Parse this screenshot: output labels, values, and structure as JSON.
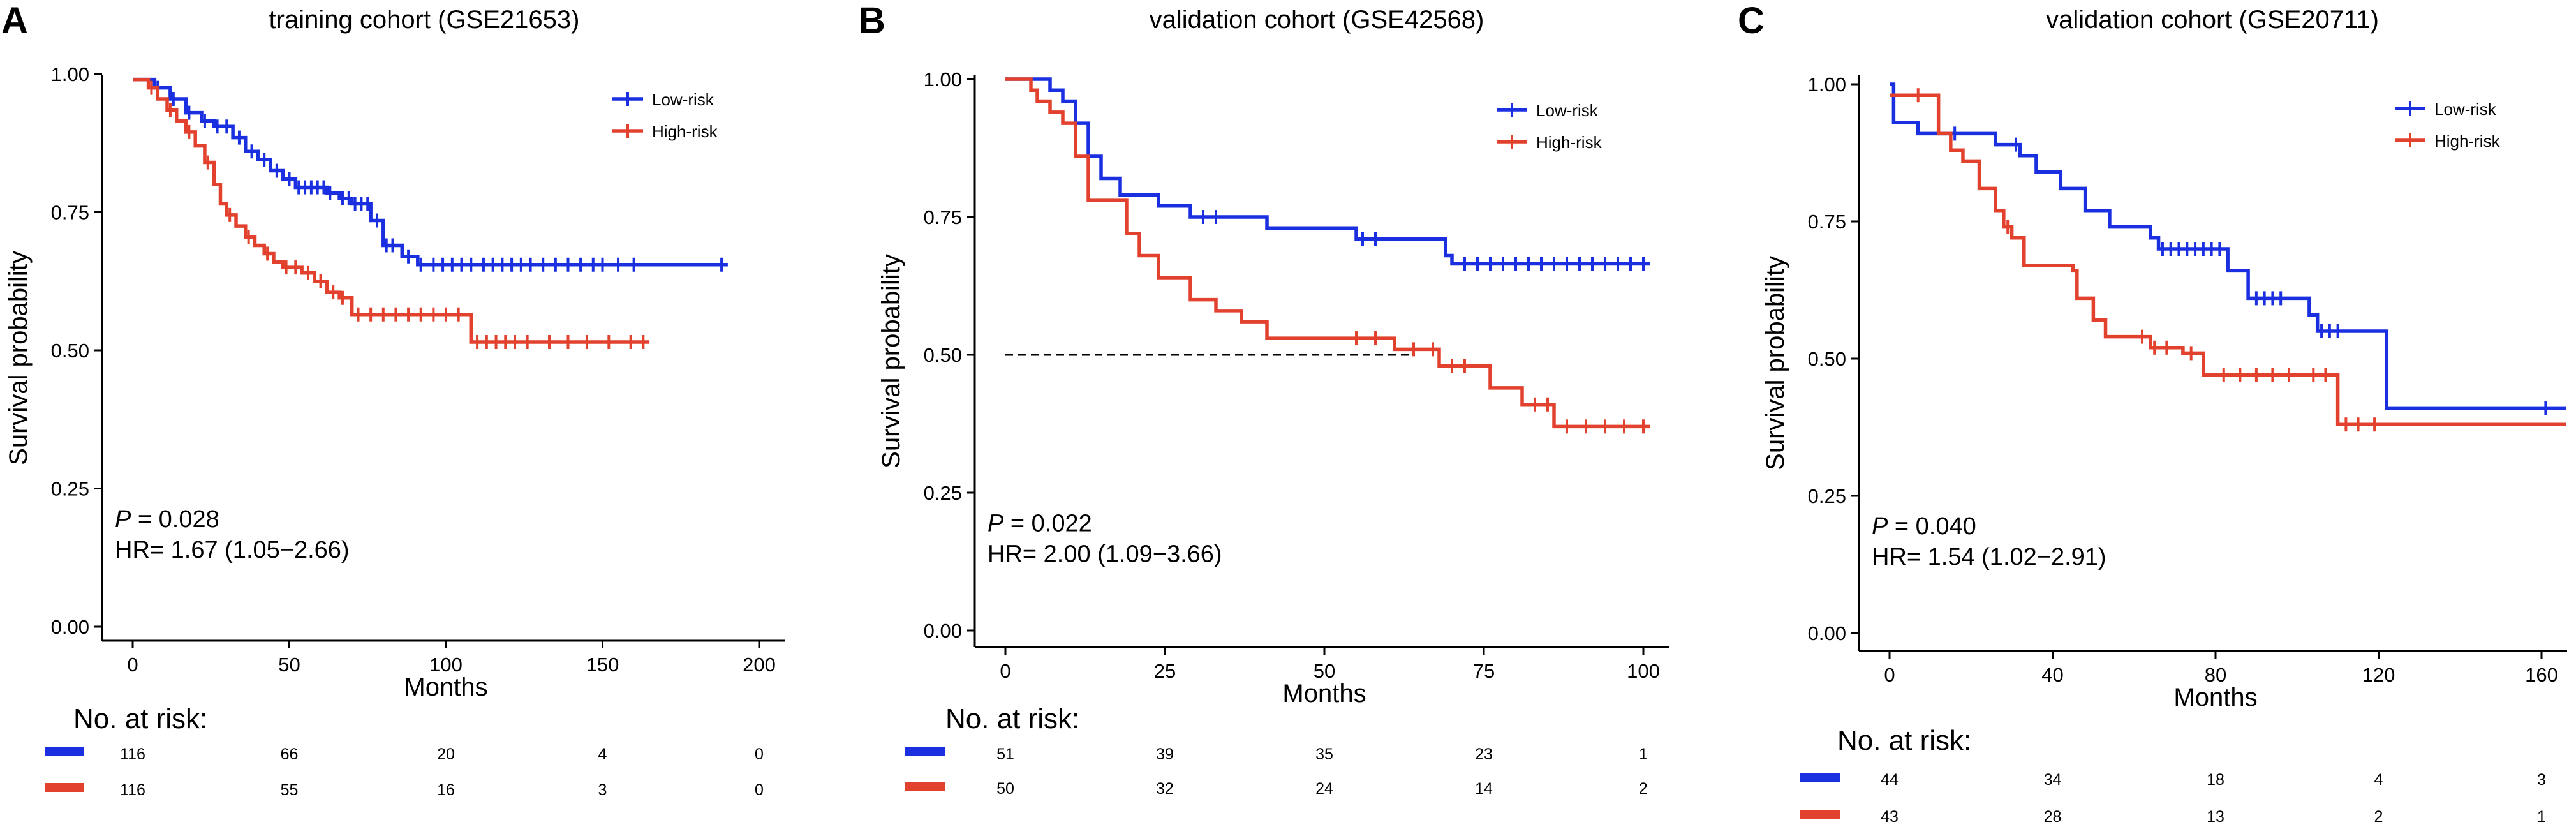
{
  "colors": {
    "low": "#1a2fe0",
    "high": "#e2412e",
    "axis": "#000000",
    "text": "#000000"
  },
  "y_axis_label": "Survival probability",
  "x_axis_label": "Months",
  "risk_title": "No. at risk:",
  "chart_data": [
    {
      "type": "line",
      "panel_letter": "A",
      "title": "training cohort (GSE21653)",
      "xlabel": "Months",
      "ylabel": "Survival probability",
      "xlim": [
        0,
        200
      ],
      "ylim": [
        0,
        1
      ],
      "xticks": [
        0,
        50,
        100,
        150,
        200
      ],
      "yticks": [
        0.0,
        0.25,
        0.5,
        0.75,
        1.0
      ],
      "legend_position": "top-right",
      "stats": {
        "p_label": "P",
        "p_value": "= 0.028",
        "hr": "HR= 1.67 (1.05−2.66)"
      },
      "median_line": null,
      "series": [
        {
          "name": "Low-risk",
          "color_key": "low",
          "steps": [
            [
              0,
              0.99
            ],
            [
              7,
              0.975
            ],
            [
              12,
              0.955
            ],
            [
              17,
              0.93
            ],
            [
              22,
              0.915
            ],
            [
              26,
              0.905
            ],
            [
              32,
              0.885
            ],
            [
              36,
              0.86
            ],
            [
              40,
              0.845
            ],
            [
              44,
              0.825
            ],
            [
              48,
              0.81
            ],
            [
              52,
              0.795
            ],
            [
              62,
              0.785
            ],
            [
              66,
              0.775
            ],
            [
              70,
              0.765
            ],
            [
              76,
              0.735
            ],
            [
              80,
              0.69
            ],
            [
              86,
              0.67
            ],
            [
              91,
              0.655
            ],
            [
              190,
              0.655
            ]
          ],
          "censor": [
            8,
            13,
            18,
            23,
            27,
            30,
            34,
            38,
            42,
            46,
            50,
            53,
            55,
            57,
            59,
            61,
            63,
            67,
            69,
            71,
            73,
            75,
            78,
            81,
            83,
            88,
            92,
            96,
            99,
            102,
            105,
            108,
            112,
            115,
            118,
            121,
            124,
            127,
            131,
            135,
            139,
            143,
            147,
            150,
            155,
            160,
            188
          ]
        },
        {
          "name": "High-risk",
          "color_key": "high",
          "steps": [
            [
              0,
              0.99
            ],
            [
              5,
              0.975
            ],
            [
              8,
              0.955
            ],
            [
              11,
              0.935
            ],
            [
              14,
              0.915
            ],
            [
              17,
              0.895
            ],
            [
              20,
              0.87
            ],
            [
              23,
              0.84
            ],
            [
              26,
              0.8
            ],
            [
              28,
              0.765
            ],
            [
              30,
              0.745
            ],
            [
              33,
              0.725
            ],
            [
              36,
              0.705
            ],
            [
              39,
              0.69
            ],
            [
              42,
              0.675
            ],
            [
              45,
              0.66
            ],
            [
              48,
              0.65
            ],
            [
              54,
              0.64
            ],
            [
              58,
              0.625
            ],
            [
              62,
              0.605
            ],
            [
              66,
              0.595
            ],
            [
              70,
              0.565
            ],
            [
              108,
              0.515
            ],
            [
              165,
              0.515
            ]
          ],
          "censor": [
            6,
            12,
            18,
            24,
            31,
            37,
            43,
            49,
            52,
            56,
            60,
            64,
            67,
            72,
            76,
            80,
            84,
            88,
            92,
            96,
            100,
            104,
            110,
            113,
            116,
            119,
            122,
            126,
            133,
            139,
            145,
            152,
            159,
            163
          ]
        }
      ],
      "risk_times": [
        0,
        50,
        100,
        150,
        200
      ],
      "risk_table": [
        {
          "group": "Low-risk",
          "color_key": "low",
          "counts": [
            "116",
            "66",
            "20",
            "4",
            "0"
          ]
        },
        {
          "group": "High-risk",
          "color_key": "high",
          "counts": [
            "116",
            "55",
            "16",
            "3",
            "0"
          ]
        }
      ]
    },
    {
      "type": "line",
      "panel_letter": "B",
      "title": "validation cohort (GSE42568)",
      "xlabel": "Months",
      "ylabel": "Survival probability",
      "xlim": [
        0,
        100
      ],
      "ylim": [
        0,
        1
      ],
      "xticks": [
        0,
        25,
        50,
        75,
        100
      ],
      "yticks": [
        0.0,
        0.25,
        0.5,
        0.75,
        1.0
      ],
      "legend_position": "top-right",
      "stats": {
        "p_label": "P",
        "p_value": "= 0.022",
        "hr": "HR= 2.00 (1.09−3.66)"
      },
      "median_line": {
        "y": 0.5,
        "x_start": 0,
        "x_end": 64
      },
      "series": [
        {
          "name": "Low-risk",
          "color_key": "low",
          "steps": [
            [
              0,
              1.0
            ],
            [
              7,
              0.98
            ],
            [
              9,
              0.96
            ],
            [
              11,
              0.92
            ],
            [
              13,
              0.86
            ],
            [
              15,
              0.82
            ],
            [
              18,
              0.79
            ],
            [
              24,
              0.77
            ],
            [
              29,
              0.75
            ],
            [
              41,
              0.73
            ],
            [
              55,
              0.71
            ],
            [
              69,
              0.68
            ],
            [
              70,
              0.665
            ],
            [
              101,
              0.665
            ]
          ],
          "censor": [
            31,
            33,
            56,
            58,
            72,
            74,
            76,
            78,
            80,
            82,
            84,
            86,
            88,
            90,
            92,
            94,
            96,
            98,
            100
          ]
        },
        {
          "name": "High-risk",
          "color_key": "high",
          "steps": [
            [
              0,
              1.0
            ],
            [
              4,
              0.98
            ],
            [
              5,
              0.96
            ],
            [
              7,
              0.94
            ],
            [
              9,
              0.92
            ],
            [
              11,
              0.86
            ],
            [
              13,
              0.78
            ],
            [
              19,
              0.72
            ],
            [
              21,
              0.68
            ],
            [
              24,
              0.64
            ],
            [
              29,
              0.6
            ],
            [
              33,
              0.58
            ],
            [
              37,
              0.56
            ],
            [
              41,
              0.53
            ],
            [
              61,
              0.51
            ],
            [
              68,
              0.48
            ],
            [
              76,
              0.44
            ],
            [
              81,
              0.41
            ],
            [
              86,
              0.37
            ],
            [
              101,
              0.37
            ]
          ],
          "censor": [
            55,
            58,
            64,
            67,
            70,
            72,
            83,
            85,
            88,
            91,
            94,
            97,
            100
          ]
        }
      ],
      "risk_times": [
        0,
        25,
        50,
        75,
        100
      ],
      "risk_table": [
        {
          "group": "Low-risk",
          "color_key": "low",
          "counts": [
            "51",
            "39",
            "35",
            "23",
            "1"
          ]
        },
        {
          "group": "High-risk",
          "color_key": "high",
          "counts": [
            "50",
            "32",
            "24",
            "14",
            "2"
          ]
        }
      ]
    },
    {
      "type": "line",
      "panel_letter": "C",
      "title": "validation cohort (GSE20711)",
      "xlabel": "Months",
      "ylabel": "Survival probability",
      "xlim": [
        0,
        160
      ],
      "ylim": [
        0,
        1
      ],
      "xticks": [
        0,
        40,
        80,
        120,
        160
      ],
      "yticks": [
        0.0,
        0.25,
        0.5,
        0.75,
        1.0
      ],
      "legend_position": "top-right",
      "stats": {
        "p_label": "P",
        "p_value": "= 0.040",
        "hr": "HR= 1.54 (1.02−2.91)"
      },
      "median_line": null,
      "series": [
        {
          "name": "Low-risk",
          "color_key": "low",
          "steps": [
            [
              0,
              1.0
            ],
            [
              1,
              0.93
            ],
            [
              7,
              0.91
            ],
            [
              26,
              0.89
            ],
            [
              32,
              0.87
            ],
            [
              36,
              0.84
            ],
            [
              42,
              0.81
            ],
            [
              48,
              0.77
            ],
            [
              54,
              0.74
            ],
            [
              64,
              0.72
            ],
            [
              66,
              0.7
            ],
            [
              83,
              0.66
            ],
            [
              88,
              0.61
            ],
            [
              103,
              0.58
            ],
            [
              105,
              0.55
            ],
            [
              122,
              0.41
            ],
            [
              166,
              0.41
            ]
          ],
          "censor": [
            16,
            31,
            67,
            69,
            71,
            73,
            75,
            77,
            79,
            81,
            90,
            92,
            94,
            96,
            106,
            108,
            110,
            161
          ]
        },
        {
          "name": "High-risk",
          "color_key": "high",
          "steps": [
            [
              0,
              0.98
            ],
            [
              12,
              0.91
            ],
            [
              15,
              0.88
            ],
            [
              18,
              0.86
            ],
            [
              22,
              0.81
            ],
            [
              26,
              0.77
            ],
            [
              28,
              0.74
            ],
            [
              30,
              0.72
            ],
            [
              33,
              0.67
            ],
            [
              45,
              0.66
            ],
            [
              46,
              0.61
            ],
            [
              50,
              0.57
            ],
            [
              53,
              0.54
            ],
            [
              64,
              0.52
            ],
            [
              72,
              0.51
            ],
            [
              77,
              0.47
            ],
            [
              110,
              0.38
            ],
            [
              166,
              0.38
            ]
          ],
          "censor": [
            7,
            29,
            62,
            65,
            68,
            74,
            82,
            86,
            90,
            94,
            98,
            104,
            107,
            112,
            115,
            119
          ]
        }
      ],
      "risk_times": [
        0,
        40,
        80,
        120,
        160
      ],
      "risk_table": [
        {
          "group": "Low-risk",
          "color_key": "low",
          "counts": [
            "44",
            "34",
            "18",
            "4",
            "3"
          ]
        },
        {
          "group": "High-risk",
          "color_key": "high",
          "counts": [
            "43",
            "28",
            "13",
            "2",
            "1"
          ]
        }
      ]
    }
  ]
}
